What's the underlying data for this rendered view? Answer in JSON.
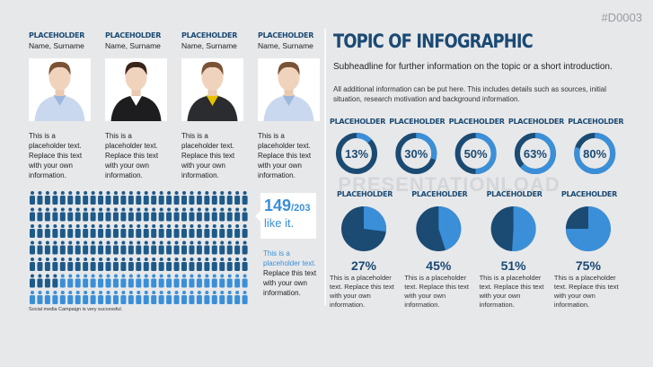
{
  "code": "#D0003",
  "title": "TOPIC OF INFOGRAPHIC",
  "subheadline": "Subheadline for further information on the topic or a short introduction.",
  "body": "All additional information can be put here. This includes details such as sources, initial situation, research motivation and background information.",
  "watermark": "PRESENTATIONLOAD",
  "people": [
    {
      "label": "PLACEHOLDER",
      "name": "Name, Surname",
      "text": "This is a placeholder text. Replace this text with your own information."
    },
    {
      "label": "PLACEHOLDER",
      "name": "Name, Surname",
      "text": "This is a placeholder text. Replace this text with your own information."
    },
    {
      "label": "PLACEHOLDER",
      "name": "Name, Surname",
      "text": "This is a placeholder text. Replace this text with your own information."
    },
    {
      "label": "PLACEHOLDER",
      "name": "Name, Surname",
      "text": "This is a placeholder text. Replace this text with your own information."
    }
  ],
  "donuts": [
    {
      "label": "PLACEHOLDER",
      "value": 13,
      "value_label": "13%"
    },
    {
      "label": "PLACEHOLDER",
      "value": 30,
      "value_label": "30%"
    },
    {
      "label": "PLACEHOLDER",
      "value": 50,
      "value_label": "50%"
    },
    {
      "label": "PLACEHOLDER",
      "value": 63,
      "value_label": "63%"
    },
    {
      "label": "PLACEHOLDER",
      "value": 80,
      "value_label": "80%"
    }
  ],
  "pies": [
    {
      "label": "PLACEHOLDER",
      "value": 27,
      "value_label": "27%",
      "text": "This is a placeholder text. Replace this text with your own information."
    },
    {
      "label": "PLACEHOLDER",
      "value": 45,
      "value_label": "45%",
      "text": "This is a placeholder text. Replace this text with your own information."
    },
    {
      "label": "PLACEHOLDER",
      "value": 51,
      "value_label": "51%",
      "text": "This is a placeholder text. Replace this text with your own information."
    },
    {
      "label": "PLACEHOLDER",
      "value": 75,
      "value_label": "75%",
      "text": "This is a placeholder text. Replace this text with your own information."
    }
  ],
  "ratio": {
    "count": 149,
    "total": 203,
    "count_label": "149",
    "total_label": "/203",
    "caption": "like it.",
    "note_highlight": "This is a placeholder text.",
    "note_rest": "Replace this text with your own information.",
    "footnote": "Social media Campaign is very successful."
  }
}
